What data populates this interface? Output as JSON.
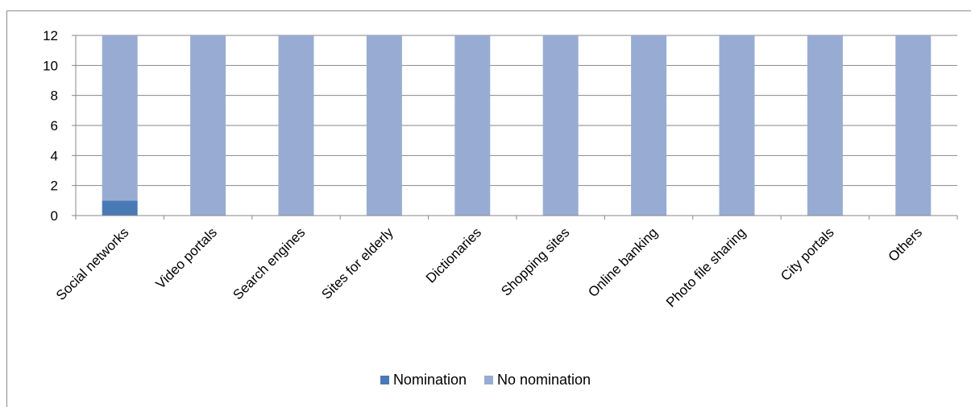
{
  "chart_data": {
    "type": "bar",
    "stacked": true,
    "categories": [
      "Social networks",
      "Video portals",
      "Search engines",
      "Sites for elderly",
      "Dictionaries",
      "Shopping sites",
      "Online banking",
      "Photo file sharing",
      "City portals",
      "Others"
    ],
    "series": [
      {
        "name": "Nomination",
        "color": "#4a7ab5",
        "values": [
          1,
          0,
          0,
          0,
          0,
          0,
          0,
          0,
          0,
          0
        ]
      },
      {
        "name": "No nomination",
        "color": "#98acd3",
        "values": [
          11,
          12,
          12,
          12,
          12,
          12,
          12,
          12,
          12,
          12
        ]
      }
    ],
    "ylim": [
      0,
      12
    ],
    "yticks": [
      0,
      2,
      4,
      6,
      8,
      10,
      12
    ],
    "grid": true,
    "legend_position": "bottom"
  }
}
